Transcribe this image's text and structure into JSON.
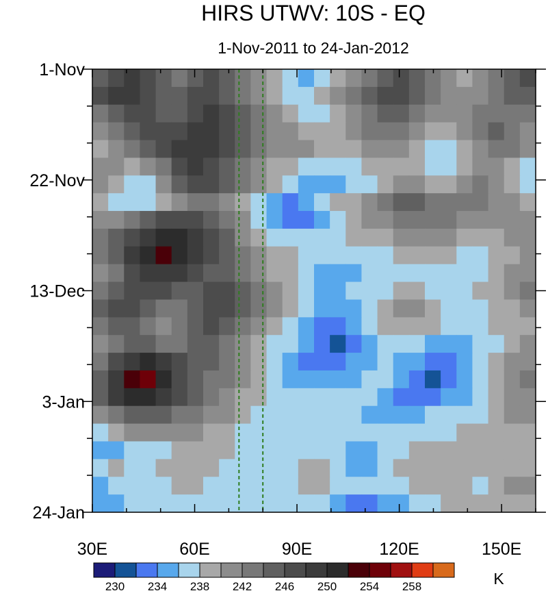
{
  "chart_data": {
    "type": "heatmap",
    "title": "HIRS UTWV: 10S - EQ",
    "subtitle": "1-Nov-2011 to 24-Jan-2012",
    "xlabel": "",
    "ylabel": "",
    "x_range": [
      30,
      160
    ],
    "x_ticks": [
      {
        "value": 30,
        "label": "30E"
      },
      {
        "value": 60,
        "label": "60E"
      },
      {
        "value": 90,
        "label": "90E"
      },
      {
        "value": 120,
        "label": "120E"
      },
      {
        "value": 150,
        "label": "150E"
      }
    ],
    "y_range": [
      "2011-11-01",
      "2012-01-24"
    ],
    "y_ticks": [
      {
        "date": "2011-11-01",
        "label": "1-Nov"
      },
      {
        "date": "2011-11-22",
        "label": "22-Nov"
      },
      {
        "date": "2011-12-13",
        "label": "13-Dec"
      },
      {
        "date": "2012-01-03",
        "label": "3-Jan"
      },
      {
        "date": "2012-01-24",
        "label": "24-Jan"
      }
    ],
    "reference_lines": [
      {
        "axis": "x",
        "value": 73,
        "color": "#2e7d1e",
        "style": "dashed"
      },
      {
        "axis": "x",
        "value": 80,
        "color": "#2e7d1e",
        "style": "dashed"
      }
    ],
    "colorbar": {
      "unit": "K",
      "levels": [
        230,
        232,
        234,
        236,
        238,
        240,
        242,
        244,
        246,
        248,
        250,
        252,
        254,
        256,
        258,
        260
      ],
      "labels": [
        {
          "value": 230,
          "text": "230"
        },
        {
          "value": 234,
          "text": "234"
        },
        {
          "value": 238,
          "text": "238"
        },
        {
          "value": 242,
          "text": "242"
        },
        {
          "value": 246,
          "text": "246"
        },
        {
          "value": 250,
          "text": "250"
        },
        {
          "value": 254,
          "text": "254"
        },
        {
          "value": 258,
          "text": "258"
        }
      ],
      "colors": [
        "#1c1c78",
        "#145396",
        "#4a78f0",
        "#58a8ec",
        "#a8d4ec",
        "#a8a8a8",
        "#8c8c8c",
        "#787878",
        "#606060",
        "#4c4c4c",
        "#3c3c3c",
        "#2c2c2c",
        "#4a0008",
        "#6e0008",
        "#a01010",
        "#e03c14",
        "#d86a1c"
      ]
    },
    "values": [
      [
        244,
        246,
        248,
        246,
        244,
        242,
        244,
        246,
        244,
        242,
        240,
        238,
        236,
        234,
        236,
        238,
        240,
        242,
        244,
        246,
        244,
        242,
        240,
        238,
        240,
        242,
        244,
        246
      ],
      [
        246,
        248,
        248,
        246,
        244,
        244,
        246,
        246,
        244,
        242,
        240,
        238,
        236,
        236,
        238,
        240,
        242,
        244,
        246,
        246,
        244,
        242,
        240,
        240,
        240,
        242,
        244,
        244
      ],
      [
        242,
        244,
        246,
        246,
        244,
        244,
        246,
        248,
        246,
        244,
        242,
        240,
        238,
        236,
        236,
        238,
        240,
        242,
        244,
        244,
        242,
        240,
        240,
        240,
        242,
        242,
        242,
        242
      ],
      [
        240,
        242,
        244,
        246,
        246,
        246,
        248,
        248,
        246,
        244,
        242,
        240,
        240,
        238,
        238,
        238,
        240,
        242,
        242,
        242,
        240,
        238,
        238,
        240,
        242,
        244,
        242,
        240
      ],
      [
        238,
        240,
        242,
        244,
        246,
        248,
        248,
        248,
        246,
        244,
        242,
        240,
        240,
        240,
        238,
        238,
        238,
        240,
        240,
        240,
        238,
        236,
        236,
        238,
        240,
        242,
        242,
        240
      ],
      [
        240,
        240,
        238,
        240,
        242,
        246,
        248,
        246,
        244,
        242,
        240,
        238,
        238,
        236,
        236,
        236,
        236,
        238,
        238,
        238,
        238,
        236,
        236,
        238,
        240,
        240,
        238,
        236
      ],
      [
        240,
        238,
        236,
        236,
        240,
        244,
        246,
        246,
        244,
        242,
        240,
        238,
        236,
        234,
        234,
        234,
        236,
        236,
        238,
        240,
        240,
        238,
        238,
        240,
        242,
        240,
        238,
        236
      ],
      [
        238,
        236,
        236,
        236,
        238,
        240,
        242,
        242,
        240,
        238,
        236,
        234,
        232,
        234,
        236,
        238,
        238,
        240,
        242,
        244,
        244,
        242,
        242,
        242,
        242,
        240,
        240,
        238
      ],
      [
        240,
        240,
        242,
        244,
        246,
        246,
        246,
        244,
        242,
        240,
        236,
        234,
        232,
        232,
        234,
        236,
        238,
        240,
        240,
        242,
        242,
        242,
        242,
        240,
        240,
        240,
        240,
        240
      ],
      [
        242,
        244,
        246,
        248,
        250,
        250,
        248,
        246,
        244,
        240,
        238,
        236,
        236,
        236,
        236,
        236,
        238,
        238,
        238,
        240,
        240,
        240,
        240,
        238,
        238,
        238,
        240,
        240
      ],
      [
        242,
        244,
        248,
        250,
        252,
        250,
        248,
        246,
        244,
        242,
        240,
        238,
        238,
        236,
        236,
        236,
        236,
        236,
        236,
        238,
        238,
        238,
        238,
        236,
        236,
        238,
        238,
        240
      ],
      [
        240,
        242,
        246,
        248,
        248,
        248,
        246,
        244,
        244,
        242,
        240,
        238,
        238,
        236,
        234,
        234,
        234,
        236,
        236,
        236,
        236,
        236,
        236,
        236,
        236,
        238,
        240,
        240
      ],
      [
        242,
        244,
        246,
        246,
        246,
        244,
        244,
        246,
        246,
        244,
        242,
        240,
        238,
        236,
        234,
        234,
        236,
        236,
        236,
        238,
        238,
        236,
        236,
        236,
        238,
        238,
        240,
        242
      ],
      [
        244,
        246,
        246,
        244,
        242,
        242,
        244,
        246,
        246,
        244,
        242,
        240,
        238,
        236,
        234,
        234,
        234,
        236,
        238,
        240,
        240,
        238,
        236,
        236,
        236,
        238,
        238,
        240
      ],
      [
        242,
        244,
        244,
        242,
        240,
        242,
        244,
        246,
        244,
        242,
        240,
        238,
        236,
        234,
        232,
        232,
        234,
        236,
        238,
        238,
        238,
        238,
        236,
        236,
        236,
        238,
        238,
        238
      ],
      [
        240,
        242,
        244,
        244,
        242,
        242,
        244,
        244,
        242,
        240,
        238,
        236,
        236,
        234,
        232,
        230,
        232,
        234,
        236,
        236,
        236,
        234,
        234,
        234,
        236,
        236,
        238,
        240
      ],
      [
        242,
        246,
        248,
        250,
        248,
        246,
        244,
        244,
        242,
        240,
        238,
        236,
        234,
        232,
        232,
        232,
        234,
        234,
        236,
        234,
        234,
        232,
        232,
        234,
        236,
        238,
        240,
        240
      ],
      [
        244,
        248,
        252,
        254,
        250,
        246,
        244,
        242,
        242,
        240,
        238,
        236,
        234,
        234,
        234,
        234,
        234,
        236,
        236,
        234,
        232,
        230,
        232,
        234,
        236,
        238,
        240,
        242
      ],
      [
        244,
        248,
        250,
        250,
        248,
        246,
        244,
        242,
        240,
        238,
        238,
        236,
        236,
        236,
        236,
        236,
        236,
        236,
        234,
        232,
        232,
        232,
        234,
        234,
        236,
        238,
        240,
        240
      ],
      [
        240,
        242,
        244,
        244,
        244,
        242,
        242,
        240,
        240,
        238,
        236,
        236,
        236,
        236,
        236,
        236,
        236,
        234,
        234,
        234,
        234,
        236,
        236,
        236,
        236,
        238,
        240,
        240
      ],
      [
        236,
        238,
        240,
        240,
        240,
        240,
        240,
        238,
        238,
        236,
        236,
        236,
        236,
        236,
        236,
        236,
        236,
        236,
        236,
        236,
        236,
        236,
        236,
        238,
        238,
        238,
        238,
        238
      ],
      [
        234,
        234,
        236,
        236,
        236,
        238,
        238,
        238,
        238,
        236,
        236,
        236,
        236,
        236,
        236,
        236,
        234,
        234,
        236,
        236,
        238,
        238,
        238,
        238,
        238,
        238,
        238,
        238
      ],
      [
        236,
        238,
        236,
        236,
        238,
        238,
        238,
        238,
        236,
        236,
        236,
        236,
        236,
        238,
        238,
        236,
        234,
        234,
        236,
        238,
        238,
        238,
        238,
        238,
        238,
        238,
        238,
        238
      ],
      [
        234,
        236,
        236,
        236,
        236,
        238,
        238,
        236,
        236,
        236,
        236,
        236,
        236,
        238,
        238,
        236,
        236,
        236,
        236,
        236,
        238,
        238,
        238,
        238,
        236,
        238,
        240,
        240
      ],
      [
        234,
        234,
        236,
        236,
        236,
        236,
        236,
        236,
        236,
        236,
        236,
        236,
        236,
        236,
        236,
        234,
        232,
        232,
        234,
        234,
        236,
        236,
        238,
        238,
        238,
        238,
        238,
        238
      ]
    ]
  }
}
